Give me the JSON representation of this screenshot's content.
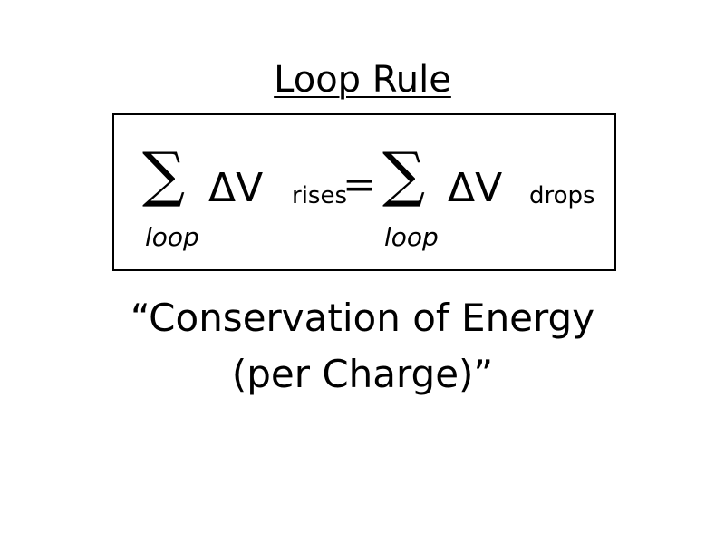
{
  "title": "Loop Rule",
  "equation": {
    "left": {
      "operator": "∑",
      "limit": "loop",
      "term": "ΔV",
      "subscript": "rises"
    },
    "relation": "=",
    "right": {
      "operator": "∑",
      "limit": "loop",
      "term": "ΔV",
      "subscript": "drops"
    }
  },
  "caption": {
    "line1": "“Conservation of Energy",
    "line2": "(per Charge)”"
  }
}
